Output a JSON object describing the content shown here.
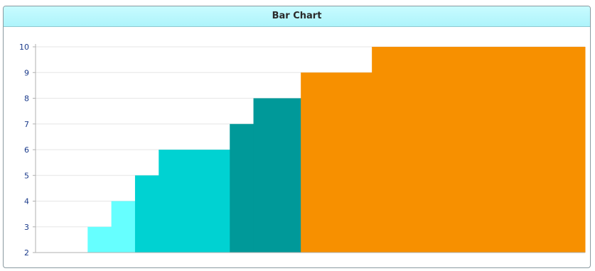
{
  "panel": {
    "title": "Bar Chart"
  },
  "chart_data": {
    "type": "bar",
    "title": "Bar Chart",
    "xlabel": "",
    "ylabel": "",
    "ylim": [
      2,
      10
    ],
    "yticks": [
      2,
      3,
      4,
      5,
      6,
      7,
      8,
      9,
      10
    ],
    "grid": true,
    "legend": "none",
    "bars": [
      {
        "value": 3,
        "weight": 1,
        "color": "#66ffff"
      },
      {
        "value": 4,
        "weight": 1,
        "color": "#66ffff"
      },
      {
        "value": 5,
        "weight": 1,
        "color": "#00d2d2"
      },
      {
        "value": 6,
        "weight": 3,
        "color": "#00d2d2"
      },
      {
        "value": 7,
        "weight": 1,
        "color": "#009999"
      },
      {
        "value": 8,
        "weight": 2,
        "color": "#009999"
      },
      {
        "value": 9,
        "weight": 3,
        "color": "#f79000"
      },
      {
        "value": 10,
        "weight": 9,
        "color": "#f79000"
      }
    ],
    "colors": {
      "light_cyan": "#66ffff",
      "cyan": "#00d2d2",
      "teal": "#009999",
      "orange": "#f79000",
      "grid": "#e6e6e6",
      "axis": "#b0b0b0",
      "tick_label": "#1a3a8a"
    }
  }
}
